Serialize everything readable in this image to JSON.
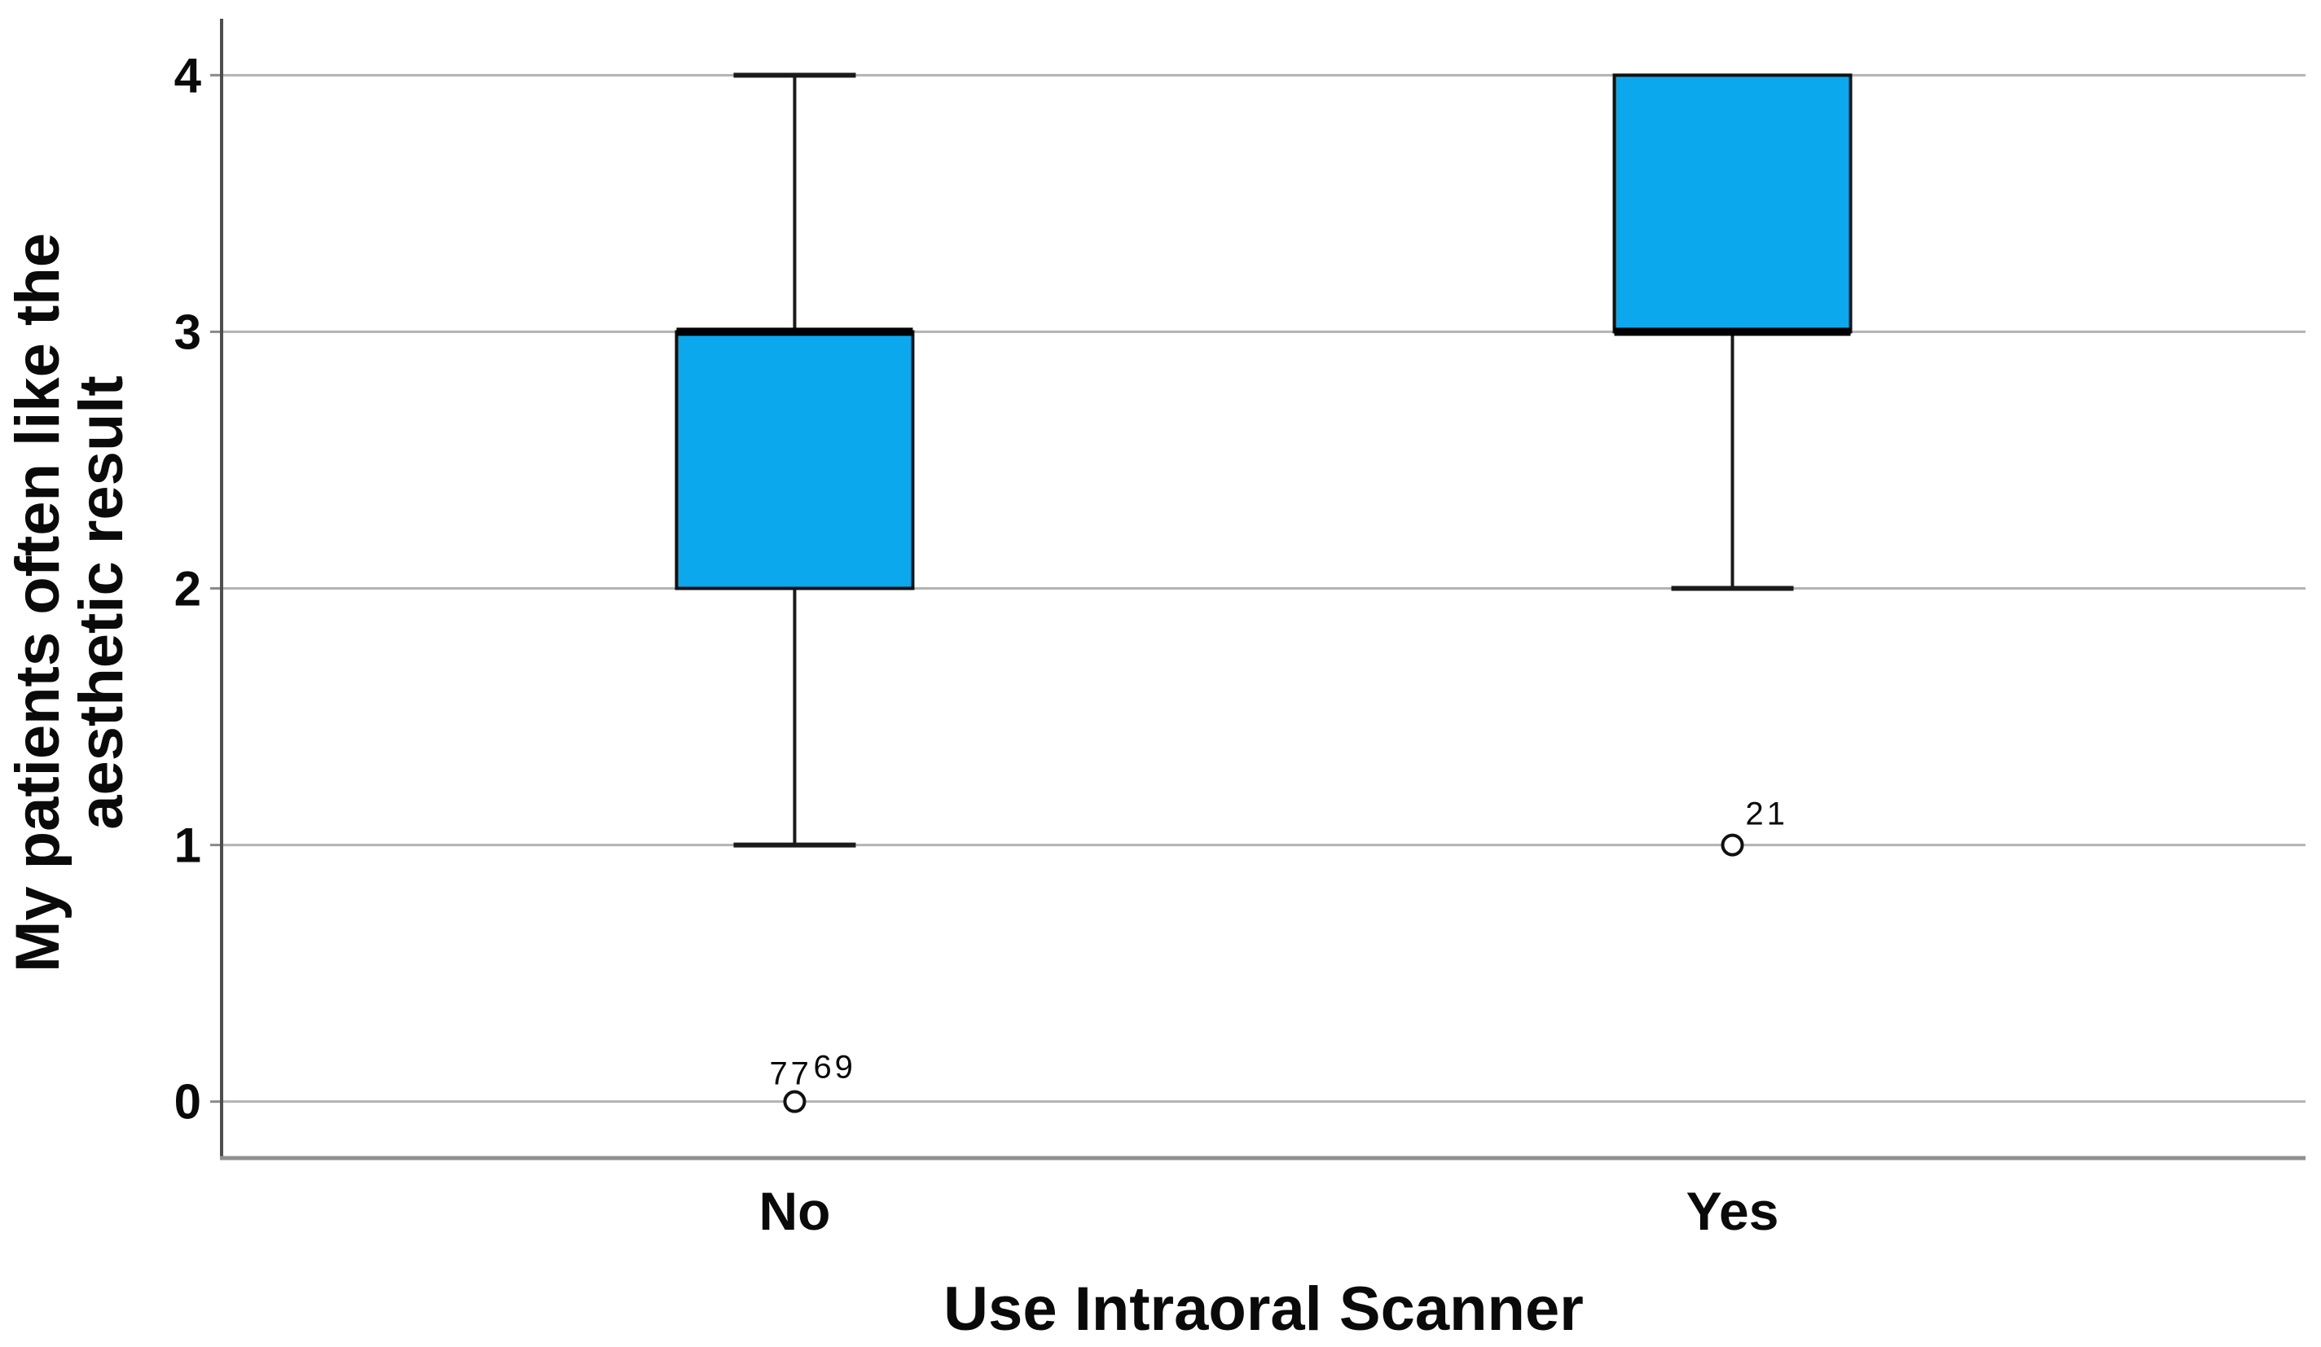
{
  "figure": {
    "background": "#ffffff"
  },
  "chart_data": {
    "type": "boxplot",
    "title": "",
    "xlabel": "Use Intraoral Scanner",
    "ylabel_lines": [
      "My patients often like the",
      "aesthetic result"
    ],
    "categories": [
      "No",
      "Yes"
    ],
    "ylim": [
      -0.22,
      4.22
    ],
    "yticks": [
      0,
      1,
      2,
      3,
      4
    ],
    "grid": "horizontal",
    "legend": "none",
    "colors": {
      "box_fill": "#0BA8EE",
      "box_stroke": "#111111",
      "median": "#000000",
      "whisker": "#1a1a1a",
      "grid_line": "#b3b3b3",
      "axis_line": "#4d4d4d",
      "baseline": "#8f8f8f",
      "tick_mark": "#8a8a8a",
      "text": "#0a0a0a",
      "outlier_fill": "#ffffff"
    },
    "series": [
      {
        "category": "No",
        "q1": 2,
        "median": 3,
        "q3": 3,
        "whisker_low": 1,
        "whisker_high": 4,
        "outliers": [
          {
            "value": 0,
            "labels": [
              {
                "text": "77",
                "dx": -31,
                "dy": -21
              },
              {
                "text": "69",
                "dx": 23,
                "dy": -29
              }
            ]
          }
        ]
      },
      {
        "category": "Yes",
        "q1": 3,
        "median": 3,
        "q3": 4,
        "whisker_low": 2,
        "whisker_high": 4,
        "outliers": [
          {
            "value": 1,
            "labels": [
              {
                "text": "21",
                "dx": 16,
                "dy": -25
              }
            ]
          }
        ]
      }
    ]
  }
}
